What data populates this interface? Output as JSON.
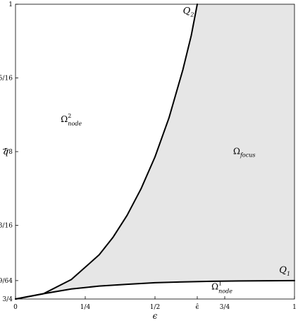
{
  "chart_data": {
    "type": "area",
    "title": "",
    "xlabel": "ϵ",
    "ylabel": "q̄",
    "xlim": [
      0,
      1
    ],
    "ylim": [
      0.75,
      1
    ],
    "grid": false,
    "x_ticks": [
      {
        "value": 0,
        "label": "0"
      },
      {
        "value": 0.25,
        "label": "1/4"
      },
      {
        "value": 0.5,
        "label": "1/2"
      },
      {
        "value": 0.6515,
        "label": "ϵ̂"
      },
      {
        "value": 0.75,
        "label": "3/4"
      },
      {
        "value": 1,
        "label": "1"
      }
    ],
    "y_ticks": [
      {
        "value": 0.75,
        "label": "3/4"
      },
      {
        "value": 0.765625,
        "label": "49/64"
      },
      {
        "value": 0.8125,
        "label": "13/16"
      },
      {
        "value": 0.875,
        "label": "7/8"
      },
      {
        "value": 0.9375,
        "label": "15/16"
      },
      {
        "value": 1,
        "label": "1"
      }
    ],
    "series": [
      {
        "name": "Q2",
        "x": [
          0.0,
          0.1,
          0.2,
          0.3,
          0.35,
          0.4,
          0.45,
          0.5,
          0.55,
          0.6,
          0.63,
          0.6515
        ],
        "y": [
          0.75,
          0.7545,
          0.7665,
          0.7875,
          0.8025,
          0.821,
          0.8435,
          0.8705,
          0.9035,
          0.9445,
          0.9735,
          1.0
        ]
      },
      {
        "name": "Q1",
        "x": [
          0.0,
          0.1,
          0.2,
          0.3,
          0.4,
          0.5,
          0.6,
          0.7,
          0.8,
          0.9,
          1.0
        ],
        "y": [
          0.75,
          0.7545,
          0.7585,
          0.761,
          0.7625,
          0.7638,
          0.7645,
          0.765,
          0.7653,
          0.7655,
          0.7656
        ]
      }
    ],
    "regions": [
      {
        "name": "Ω_focus",
        "main": "Ω",
        "sub": "focus",
        "sup": "",
        "x": 0.82,
        "y": 0.873,
        "fill": "#e6e6e6"
      },
      {
        "name": "Ω²_node",
        "main": "Ω",
        "sub": "node",
        "sup": "2",
        "x": 0.2,
        "y": 0.9,
        "fill": "#ffffff"
      },
      {
        "name": "Ω¹_node",
        "main": "Ω",
        "sub": "node",
        "sup": "1",
        "x": 0.74,
        "y": 0.758,
        "fill": "#ffffff"
      }
    ],
    "curve_labels": [
      {
        "main": "Q",
        "sub": "2",
        "x": 0.64,
        "y": 0.992
      },
      {
        "main": "Q",
        "sub": "1",
        "x": 0.985,
        "y": 0.772
      }
    ],
    "colors": {
      "focus_fill": "#e6e6e6",
      "curve": "#000000"
    }
  }
}
